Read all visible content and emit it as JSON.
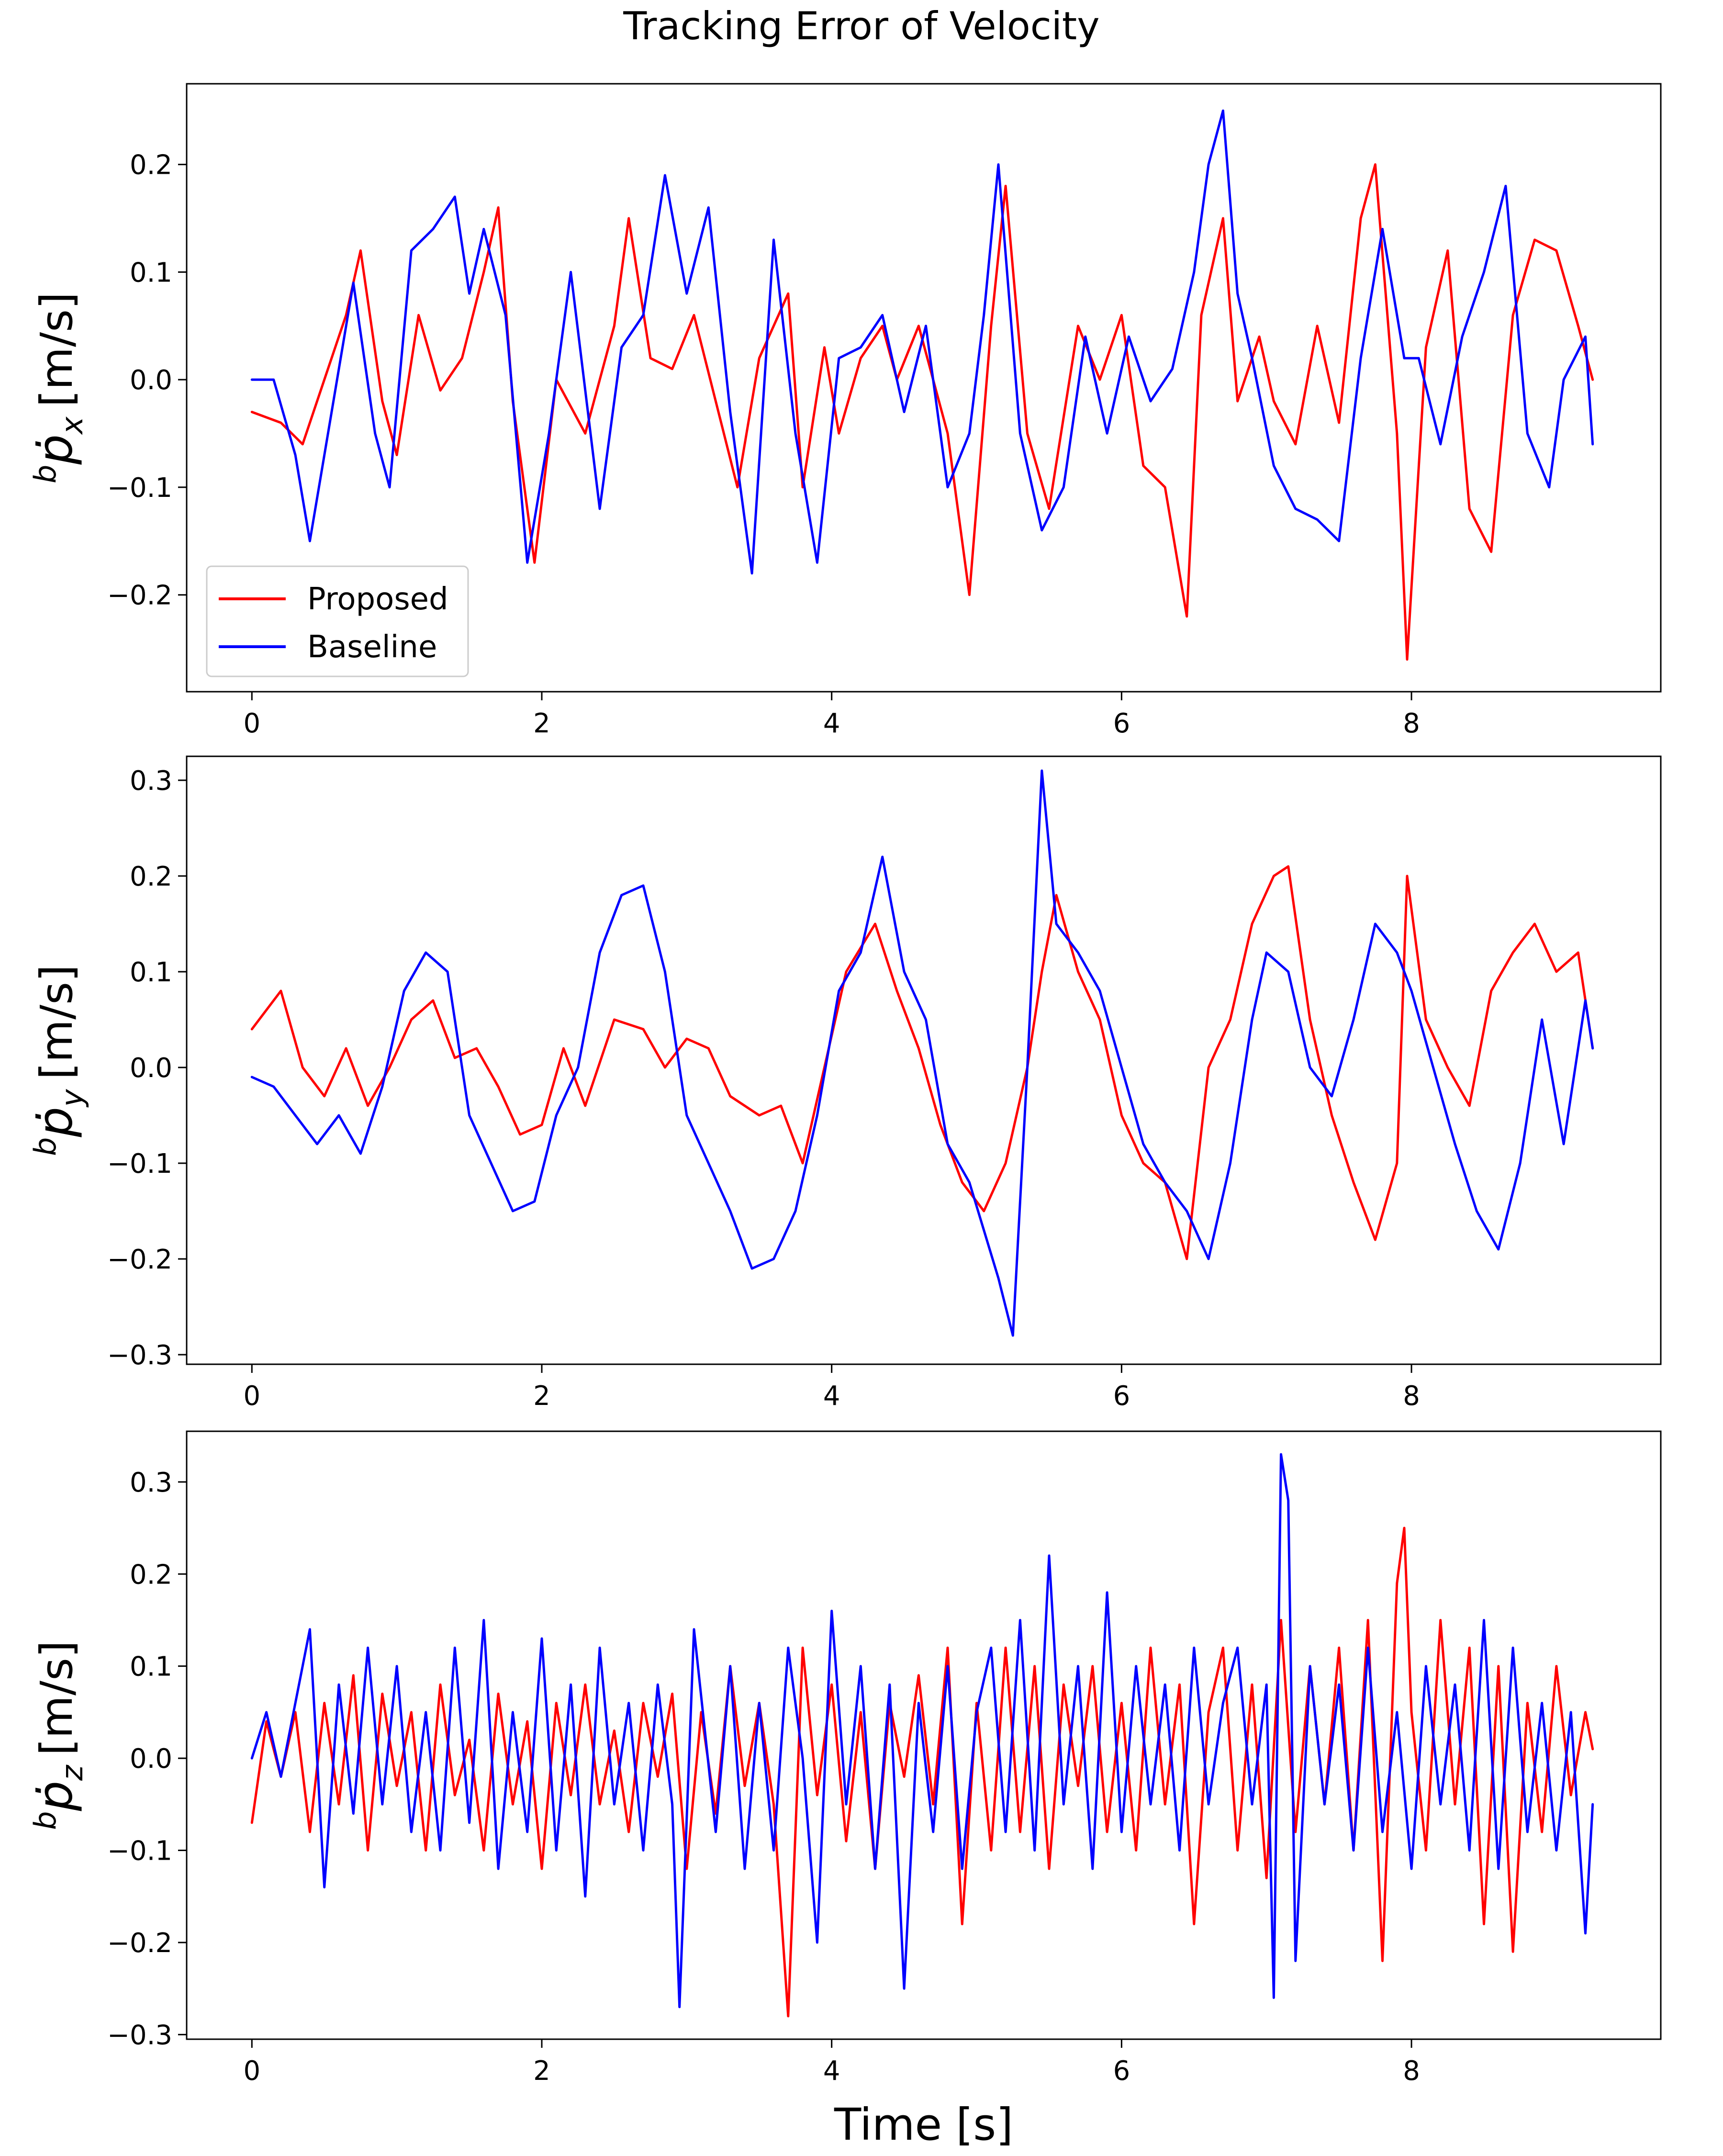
{
  "figure": {
    "title": "Tracking Error of Velocity",
    "xlabel": "Time [s]"
  },
  "colors": {
    "proposed": "#ff0000",
    "baseline": "#0000ff",
    "axes": "#000000",
    "background": "#ffffff"
  },
  "legend": {
    "placement": "lower-left of top panel",
    "items": [
      {
        "label": "Proposed",
        "color": "#ff0000"
      },
      {
        "label": "Baseline",
        "color": "#0000ff"
      }
    ]
  },
  "chart_data": [
    {
      "type": "line",
      "title": "Tracking Error of Velocity",
      "xlabel": "",
      "ylabel_prefix": "b",
      "ylabel_symbol": "ṗ",
      "ylabel_subscript": "x",
      "ylabel_unit": "[m/s]",
      "xlim": [
        -0.45,
        9.72
      ],
      "ylim": [
        -0.29,
        0.275
      ],
      "xticks": [
        0,
        2,
        4,
        6,
        8
      ],
      "xtick_labels": [
        "0",
        "2",
        "4",
        "6",
        "8"
      ],
      "yticks": [
        -0.2,
        -0.1,
        0.0,
        0.1,
        0.2
      ],
      "ytick_labels": [
        "−0.2",
        "−0.1",
        "0.0",
        "0.1",
        "0.2"
      ],
      "series": [
        {
          "name": "Proposed",
          "color": "#ff0000",
          "x": [
            0,
            0.2,
            0.35,
            0.5,
            0.65,
            0.75,
            0.9,
            1.0,
            1.15,
            1.3,
            1.45,
            1.6,
            1.7,
            1.8,
            1.95,
            2.1,
            2.3,
            2.5,
            2.6,
            2.75,
            2.9,
            3.05,
            3.2,
            3.35,
            3.5,
            3.7,
            3.8,
            3.95,
            4.05,
            4.2,
            4.35,
            4.45,
            4.6,
            4.8,
            4.95,
            5.1,
            5.2,
            5.35,
            5.5,
            5.7,
            5.85,
            6.0,
            6.15,
            6.3,
            6.45,
            6.55,
            6.7,
            6.8,
            6.95,
            7.05,
            7.2,
            7.35,
            7.5,
            7.65,
            7.75,
            7.9,
            7.97,
            8.1,
            8.25,
            8.4,
            8.55,
            8.7,
            8.85,
            9.0,
            9.15,
            9.25
          ],
          "y": [
            -0.03,
            -0.04,
            -0.06,
            0.0,
            0.06,
            0.12,
            -0.02,
            -0.07,
            0.06,
            -0.01,
            0.02,
            0.1,
            0.16,
            -0.02,
            -0.17,
            0.0,
            -0.05,
            0.05,
            0.15,
            0.02,
            0.01,
            0.06,
            -0.02,
            -0.1,
            0.02,
            0.08,
            -0.1,
            0.03,
            -0.05,
            0.02,
            0.05,
            0.0,
            0.05,
            -0.05,
            -0.2,
            0.05,
            0.18,
            -0.05,
            -0.12,
            0.05,
            0.0,
            0.06,
            -0.08,
            -0.1,
            -0.22,
            0.06,
            0.15,
            -0.02,
            0.04,
            -0.02,
            -0.06,
            0.05,
            -0.04,
            0.15,
            0.2,
            -0.05,
            -0.26,
            0.03,
            0.12,
            -0.12,
            -0.16,
            0.06,
            0.13,
            0.12,
            0.05,
            0.0
          ]
        },
        {
          "name": "Baseline",
          "color": "#0000ff",
          "x": [
            0,
            0.15,
            0.3,
            0.4,
            0.55,
            0.7,
            0.85,
            0.95,
            1.1,
            1.25,
            1.4,
            1.5,
            1.6,
            1.75,
            1.9,
            2.05,
            2.2,
            2.4,
            2.55,
            2.7,
            2.85,
            3.0,
            3.15,
            3.3,
            3.45,
            3.6,
            3.75,
            3.9,
            4.05,
            4.2,
            4.35,
            4.5,
            4.65,
            4.8,
            4.95,
            5.05,
            5.15,
            5.3,
            5.45,
            5.6,
            5.75,
            5.9,
            6.05,
            6.2,
            6.35,
            6.5,
            6.6,
            6.7,
            6.8,
            6.9,
            7.05,
            7.2,
            7.35,
            7.5,
            7.65,
            7.8,
            7.95,
            8.05,
            8.2,
            8.35,
            8.5,
            8.65,
            8.8,
            8.95,
            9.05,
            9.2,
            9.25
          ],
          "y": [
            0.0,
            0.0,
            -0.07,
            -0.15,
            -0.03,
            0.09,
            -0.05,
            -0.1,
            0.12,
            0.14,
            0.17,
            0.08,
            0.14,
            0.06,
            -0.17,
            -0.05,
            0.1,
            -0.12,
            0.03,
            0.06,
            0.19,
            0.08,
            0.16,
            -0.03,
            -0.18,
            0.13,
            -0.05,
            -0.17,
            0.02,
            0.03,
            0.06,
            -0.03,
            0.05,
            -0.1,
            -0.05,
            0.06,
            0.2,
            -0.05,
            -0.14,
            -0.1,
            0.04,
            -0.05,
            0.04,
            -0.02,
            0.01,
            0.1,
            0.2,
            0.25,
            0.08,
            0.02,
            -0.08,
            -0.12,
            -0.13,
            -0.15,
            0.02,
            0.14,
            0.02,
            0.02,
            -0.06,
            0.04,
            0.1,
            0.18,
            -0.05,
            -0.1,
            0.0,
            0.04,
            -0.06
          ]
        }
      ]
    },
    {
      "type": "line",
      "xlabel": "",
      "ylabel_prefix": "b",
      "ylabel_symbol": "ṗ",
      "ylabel_subscript": "y",
      "ylabel_unit": "[m/s]",
      "xlim": [
        -0.45,
        9.72
      ],
      "ylim": [
        -0.31,
        0.325
      ],
      "xticks": [
        0,
        2,
        4,
        6,
        8
      ],
      "xtick_labels": [
        "0",
        "2",
        "4",
        "6",
        "8"
      ],
      "yticks": [
        -0.3,
        -0.2,
        -0.1,
        0.0,
        0.1,
        0.2,
        0.3
      ],
      "ytick_labels": [
        "−0.3",
        "−0.2",
        "−0.1",
        "0.0",
        "0.1",
        "0.2",
        "0.3"
      ],
      "series": [
        {
          "name": "Proposed",
          "color": "#ff0000",
          "x": [
            0,
            0.1,
            0.2,
            0.35,
            0.5,
            0.65,
            0.8,
            0.95,
            1.1,
            1.25,
            1.4,
            1.55,
            1.7,
            1.85,
            2.0,
            2.15,
            2.3,
            2.5,
            2.7,
            2.85,
            3.0,
            3.15,
            3.3,
            3.5,
            3.65,
            3.8,
            3.95,
            4.1,
            4.3,
            4.45,
            4.6,
            4.75,
            4.9,
            5.05,
            5.2,
            5.35,
            5.45,
            5.55,
            5.7,
            5.85,
            6.0,
            6.15,
            6.3,
            6.45,
            6.6,
            6.75,
            6.9,
            7.05,
            7.15,
            7.3,
            7.45,
            7.6,
            7.75,
            7.9,
            7.97,
            8.1,
            8.25,
            8.4,
            8.55,
            8.7,
            8.85,
            9.0,
            9.15,
            9.25
          ],
          "y": [
            0.04,
            0.06,
            0.08,
            0.0,
            -0.03,
            0.02,
            -0.04,
            0.0,
            0.05,
            0.07,
            0.01,
            0.02,
            -0.02,
            -0.07,
            -0.06,
            0.02,
            -0.04,
            0.05,
            0.04,
            0.0,
            0.03,
            0.02,
            -0.03,
            -0.05,
            -0.04,
            -0.1,
            0.0,
            0.1,
            0.15,
            0.08,
            0.02,
            -0.06,
            -0.12,
            -0.15,
            -0.1,
            0.0,
            0.1,
            0.18,
            0.1,
            0.05,
            -0.05,
            -0.1,
            -0.12,
            -0.2,
            0.0,
            0.05,
            0.15,
            0.2,
            0.21,
            0.05,
            -0.05,
            -0.12,
            -0.18,
            -0.1,
            0.2,
            0.05,
            0.0,
            -0.04,
            0.08,
            0.12,
            0.15,
            0.1,
            0.12,
            0.02
          ]
        },
        {
          "name": "Baseline",
          "color": "#0000ff",
          "x": [
            0,
            0.15,
            0.3,
            0.45,
            0.6,
            0.75,
            0.9,
            1.05,
            1.2,
            1.35,
            1.5,
            1.65,
            1.8,
            1.95,
            2.1,
            2.25,
            2.4,
            2.55,
            2.7,
            2.85,
            3.0,
            3.15,
            3.3,
            3.45,
            3.6,
            3.75,
            3.9,
            4.05,
            4.2,
            4.35,
            4.5,
            4.65,
            4.8,
            4.95,
            5.05,
            5.15,
            5.25,
            5.35,
            5.45,
            5.55,
            5.7,
            5.85,
            6.0,
            6.15,
            6.3,
            6.45,
            6.6,
            6.75,
            6.9,
            7.0,
            7.15,
            7.3,
            7.45,
            7.6,
            7.75,
            7.9,
            8.0,
            8.15,
            8.3,
            8.45,
            8.6,
            8.75,
            8.9,
            9.05,
            9.2,
            9.25
          ],
          "y": [
            -0.01,
            -0.02,
            -0.05,
            -0.08,
            -0.05,
            -0.09,
            -0.02,
            0.08,
            0.12,
            0.1,
            -0.05,
            -0.1,
            -0.15,
            -0.14,
            -0.05,
            0.0,
            0.12,
            0.18,
            0.19,
            0.1,
            -0.05,
            -0.1,
            -0.15,
            -0.21,
            -0.2,
            -0.15,
            -0.05,
            0.08,
            0.12,
            0.22,
            0.1,
            0.05,
            -0.08,
            -0.12,
            -0.17,
            -0.22,
            -0.28,
            0.0,
            0.31,
            0.15,
            0.12,
            0.08,
            0.0,
            -0.08,
            -0.12,
            -0.15,
            -0.2,
            -0.1,
            0.05,
            0.12,
            0.1,
            0.0,
            -0.03,
            0.05,
            0.15,
            0.12,
            0.08,
            0.0,
            -0.08,
            -0.15,
            -0.19,
            -0.1,
            0.05,
            -0.08,
            0.07,
            0.02
          ]
        }
      ]
    },
    {
      "type": "line",
      "xlabel": "Time [s]",
      "ylabel_prefix": "b",
      "ylabel_symbol": "ṗ",
      "ylabel_subscript": "z",
      "ylabel_unit": "[m/s]",
      "xlim": [
        -0.45,
        9.72
      ],
      "ylim": [
        -0.305,
        0.355
      ],
      "xticks": [
        0,
        2,
        4,
        6,
        8
      ],
      "xtick_labels": [
        "0",
        "2",
        "4",
        "6",
        "8"
      ],
      "yticks": [
        -0.3,
        -0.2,
        -0.1,
        0.0,
        0.1,
        0.2,
        0.3
      ],
      "ytick_labels": [
        "−0.3",
        "−0.2",
        "−0.1",
        "0.0",
        "0.1",
        "0.2",
        "0.3"
      ],
      "series": [
        {
          "name": "Proposed",
          "color": "#ff0000",
          "x": [
            0,
            0.1,
            0.2,
            0.3,
            0.4,
            0.5,
            0.6,
            0.7,
            0.8,
            0.9,
            1.0,
            1.1,
            1.2,
            1.3,
            1.4,
            1.5,
            1.6,
            1.7,
            1.8,
            1.9,
            2.0,
            2.1,
            2.2,
            2.3,
            2.4,
            2.5,
            2.6,
            2.7,
            2.8,
            2.9,
            3.0,
            3.1,
            3.2,
            3.3,
            3.4,
            3.5,
            3.6,
            3.7,
            3.8,
            3.9,
            4.0,
            4.1,
            4.2,
            4.3,
            4.4,
            4.5,
            4.6,
            4.7,
            4.8,
            4.9,
            5.0,
            5.1,
            5.2,
            5.3,
            5.4,
            5.5,
            5.6,
            5.7,
            5.8,
            5.9,
            6.0,
            6.1,
            6.2,
            6.3,
            6.4,
            6.5,
            6.6,
            6.7,
            6.8,
            6.9,
            7.0,
            7.1,
            7.2,
            7.3,
            7.4,
            7.5,
            7.6,
            7.7,
            7.8,
            7.9,
            7.95,
            8.0,
            8.1,
            8.2,
            8.3,
            8.4,
            8.5,
            8.6,
            8.7,
            8.8,
            8.9,
            9.0,
            9.1,
            9.2,
            9.25
          ],
          "y": [
            -0.07,
            0.04,
            -0.02,
            0.05,
            -0.08,
            0.06,
            -0.05,
            0.09,
            -0.1,
            0.07,
            -0.03,
            0.05,
            -0.1,
            0.08,
            -0.04,
            0.02,
            -0.1,
            0.07,
            -0.05,
            0.04,
            -0.12,
            0.06,
            -0.04,
            0.08,
            -0.05,
            0.03,
            -0.08,
            0.06,
            -0.02,
            0.07,
            -0.12,
            0.05,
            -0.06,
            0.1,
            -0.03,
            0.06,
            -0.05,
            -0.28,
            0.12,
            -0.04,
            0.08,
            -0.09,
            0.05,
            -0.12,
            0.06,
            -0.02,
            0.09,
            -0.05,
            0.12,
            -0.18,
            0.06,
            -0.1,
            0.12,
            -0.08,
            0.1,
            -0.12,
            0.08,
            -0.03,
            0.1,
            -0.08,
            0.06,
            -0.1,
            0.12,
            -0.05,
            0.08,
            -0.18,
            0.05,
            0.12,
            -0.1,
            0.08,
            -0.13,
            0.15,
            -0.08,
            0.1,
            -0.05,
            0.12,
            -0.1,
            0.15,
            -0.22,
            0.19,
            0.25,
            0.05,
            -0.1,
            0.15,
            -0.05,
            0.12,
            -0.18,
            0.1,
            -0.21,
            0.06,
            -0.08,
            0.1,
            -0.04,
            0.05,
            0.01
          ]
        },
        {
          "name": "Baseline",
          "color": "#0000ff",
          "x": [
            0,
            0.1,
            0.2,
            0.3,
            0.4,
            0.5,
            0.6,
            0.7,
            0.8,
            0.9,
            1.0,
            1.1,
            1.2,
            1.3,
            1.4,
            1.5,
            1.6,
            1.7,
            1.8,
            1.9,
            2.0,
            2.1,
            2.2,
            2.3,
            2.4,
            2.5,
            2.6,
            2.7,
            2.8,
            2.9,
            2.95,
            3.05,
            3.2,
            3.3,
            3.4,
            3.5,
            3.6,
            3.7,
            3.8,
            3.9,
            4.0,
            4.1,
            4.2,
            4.3,
            4.4,
            4.5,
            4.6,
            4.7,
            4.8,
            4.9,
            5.0,
            5.1,
            5.2,
            5.3,
            5.4,
            5.5,
            5.6,
            5.7,
            5.8,
            5.9,
            6.0,
            6.1,
            6.2,
            6.3,
            6.4,
            6.5,
            6.6,
            6.7,
            6.8,
            6.9,
            7.0,
            7.05,
            7.1,
            7.15,
            7.2,
            7.3,
            7.4,
            7.5,
            7.6,
            7.7,
            7.8,
            7.9,
            8.0,
            8.1,
            8.2,
            8.3,
            8.4,
            8.5,
            8.6,
            8.7,
            8.8,
            8.9,
            9.0,
            9.1,
            9.2,
            9.25
          ],
          "y": [
            0.0,
            0.05,
            -0.02,
            0.06,
            0.14,
            -0.14,
            0.08,
            -0.06,
            0.12,
            -0.05,
            0.1,
            -0.08,
            0.05,
            -0.1,
            0.12,
            -0.07,
            0.15,
            -0.12,
            0.05,
            -0.08,
            0.13,
            -0.1,
            0.08,
            -0.15,
            0.12,
            -0.05,
            0.06,
            -0.1,
            0.08,
            -0.05,
            -0.27,
            0.14,
            -0.08,
            0.1,
            -0.12,
            0.06,
            -0.1,
            0.12,
            0.0,
            -0.2,
            0.16,
            -0.05,
            0.1,
            -0.12,
            0.08,
            -0.25,
            0.06,
            -0.08,
            0.1,
            -0.12,
            0.05,
            0.12,
            -0.08,
            0.15,
            -0.1,
            0.22,
            -0.05,
            0.1,
            -0.12,
            0.18,
            -0.08,
            0.1,
            -0.05,
            0.08,
            -0.1,
            0.12,
            -0.05,
            0.06,
            0.12,
            -0.05,
            0.08,
            -0.26,
            0.33,
            0.28,
            -0.22,
            0.1,
            -0.05,
            0.08,
            -0.1,
            0.12,
            -0.08,
            0.05,
            -0.12,
            0.1,
            -0.05,
            0.08,
            -0.1,
            0.15,
            -0.12,
            0.12,
            -0.08,
            0.06,
            -0.1,
            0.05,
            -0.19,
            -0.05
          ]
        }
      ]
    }
  ]
}
